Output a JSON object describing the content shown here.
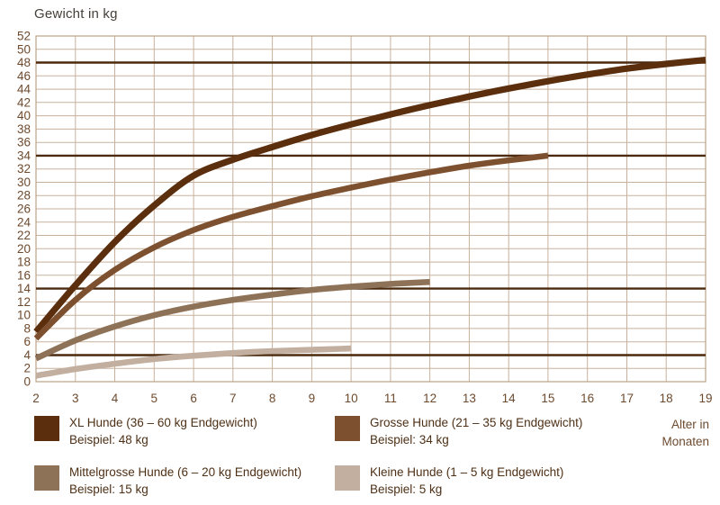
{
  "colors": {
    "background": "#ffffff",
    "grid": "#c8b19c",
    "plot_border": "#bba287",
    "reference_line": "#4b2a0e",
    "tick_text": "#6d4a2e",
    "title_text": "#45403a",
    "legend_text": "#4e3016"
  },
  "chart_data": {
    "type": "line",
    "title": "",
    "ylabel": "Gewicht in kg",
    "xlabel": "Alter in Monaten",
    "xlim": [
      2,
      19
    ],
    "ylim": [
      0,
      52
    ],
    "x_ticks": [
      2,
      3,
      4,
      5,
      6,
      7,
      8,
      9,
      10,
      11,
      12,
      13,
      14,
      15,
      16,
      17,
      18,
      19
    ],
    "y_ticks": [
      0,
      2,
      4,
      6,
      8,
      10,
      12,
      14,
      16,
      18,
      20,
      22,
      24,
      26,
      28,
      30,
      32,
      34,
      36,
      38,
      40,
      42,
      44,
      46,
      48,
      50,
      52
    ],
    "grid": true,
    "legend_position": "bottom",
    "reference_lines": [
      48,
      34,
      14,
      4
    ],
    "series": [
      {
        "name": "XL Hunde (36 – 60 kg Endgewicht)",
        "example": "Beispiel: 48 kg",
        "example_value": 48,
        "color": "#5b2e0e",
        "x": [
          2,
          3,
          4,
          5,
          6,
          7,
          8,
          9,
          10,
          11,
          12,
          13,
          14,
          15,
          16,
          17,
          18,
          19
        ],
        "values": [
          7.5,
          14.5,
          21,
          26.5,
          31,
          33.4,
          35.3,
          37.1,
          38.7,
          40.2,
          41.6,
          42.9,
          44.1,
          45.2,
          46.2,
          47.1,
          47.8,
          48.4
        ]
      },
      {
        "name": "Grosse Hunde (21 – 35 kg Endgewicht)",
        "example": "Beispiel: 34 kg",
        "example_value": 34,
        "color": "#7d5130",
        "x": [
          2,
          3,
          4,
          5,
          6,
          7,
          8,
          9,
          10,
          11,
          12,
          13,
          14,
          15
        ],
        "values": [
          6.5,
          12.3,
          16.8,
          20.2,
          22.8,
          24.8,
          26.4,
          27.9,
          29.2,
          30.4,
          31.5,
          32.5,
          33.3,
          34
        ]
      },
      {
        "name": "Mittelgrosse Hunde (6 – 20 kg Endgewicht)",
        "example": "Beispiel: 15 kg",
        "example_value": 15,
        "color": "#8e7258",
        "x": [
          2,
          3,
          4,
          5,
          6,
          7,
          8,
          9,
          10,
          11,
          12
        ],
        "values": [
          3.5,
          6.2,
          8.3,
          10,
          11.3,
          12.3,
          13.1,
          13.8,
          14.3,
          14.7,
          15
        ]
      },
      {
        "name": "Kleine Hunde (1 – 5 kg Endgewicht)",
        "example": "Beispiel: 5 kg",
        "example_value": 5,
        "color": "#c2af9f",
        "x": [
          2,
          3,
          4,
          5,
          6,
          7,
          8,
          9,
          10
        ],
        "values": [
          0.9,
          1.9,
          2.7,
          3.4,
          3.9,
          4.3,
          4.6,
          4.8,
          5
        ]
      }
    ]
  }
}
